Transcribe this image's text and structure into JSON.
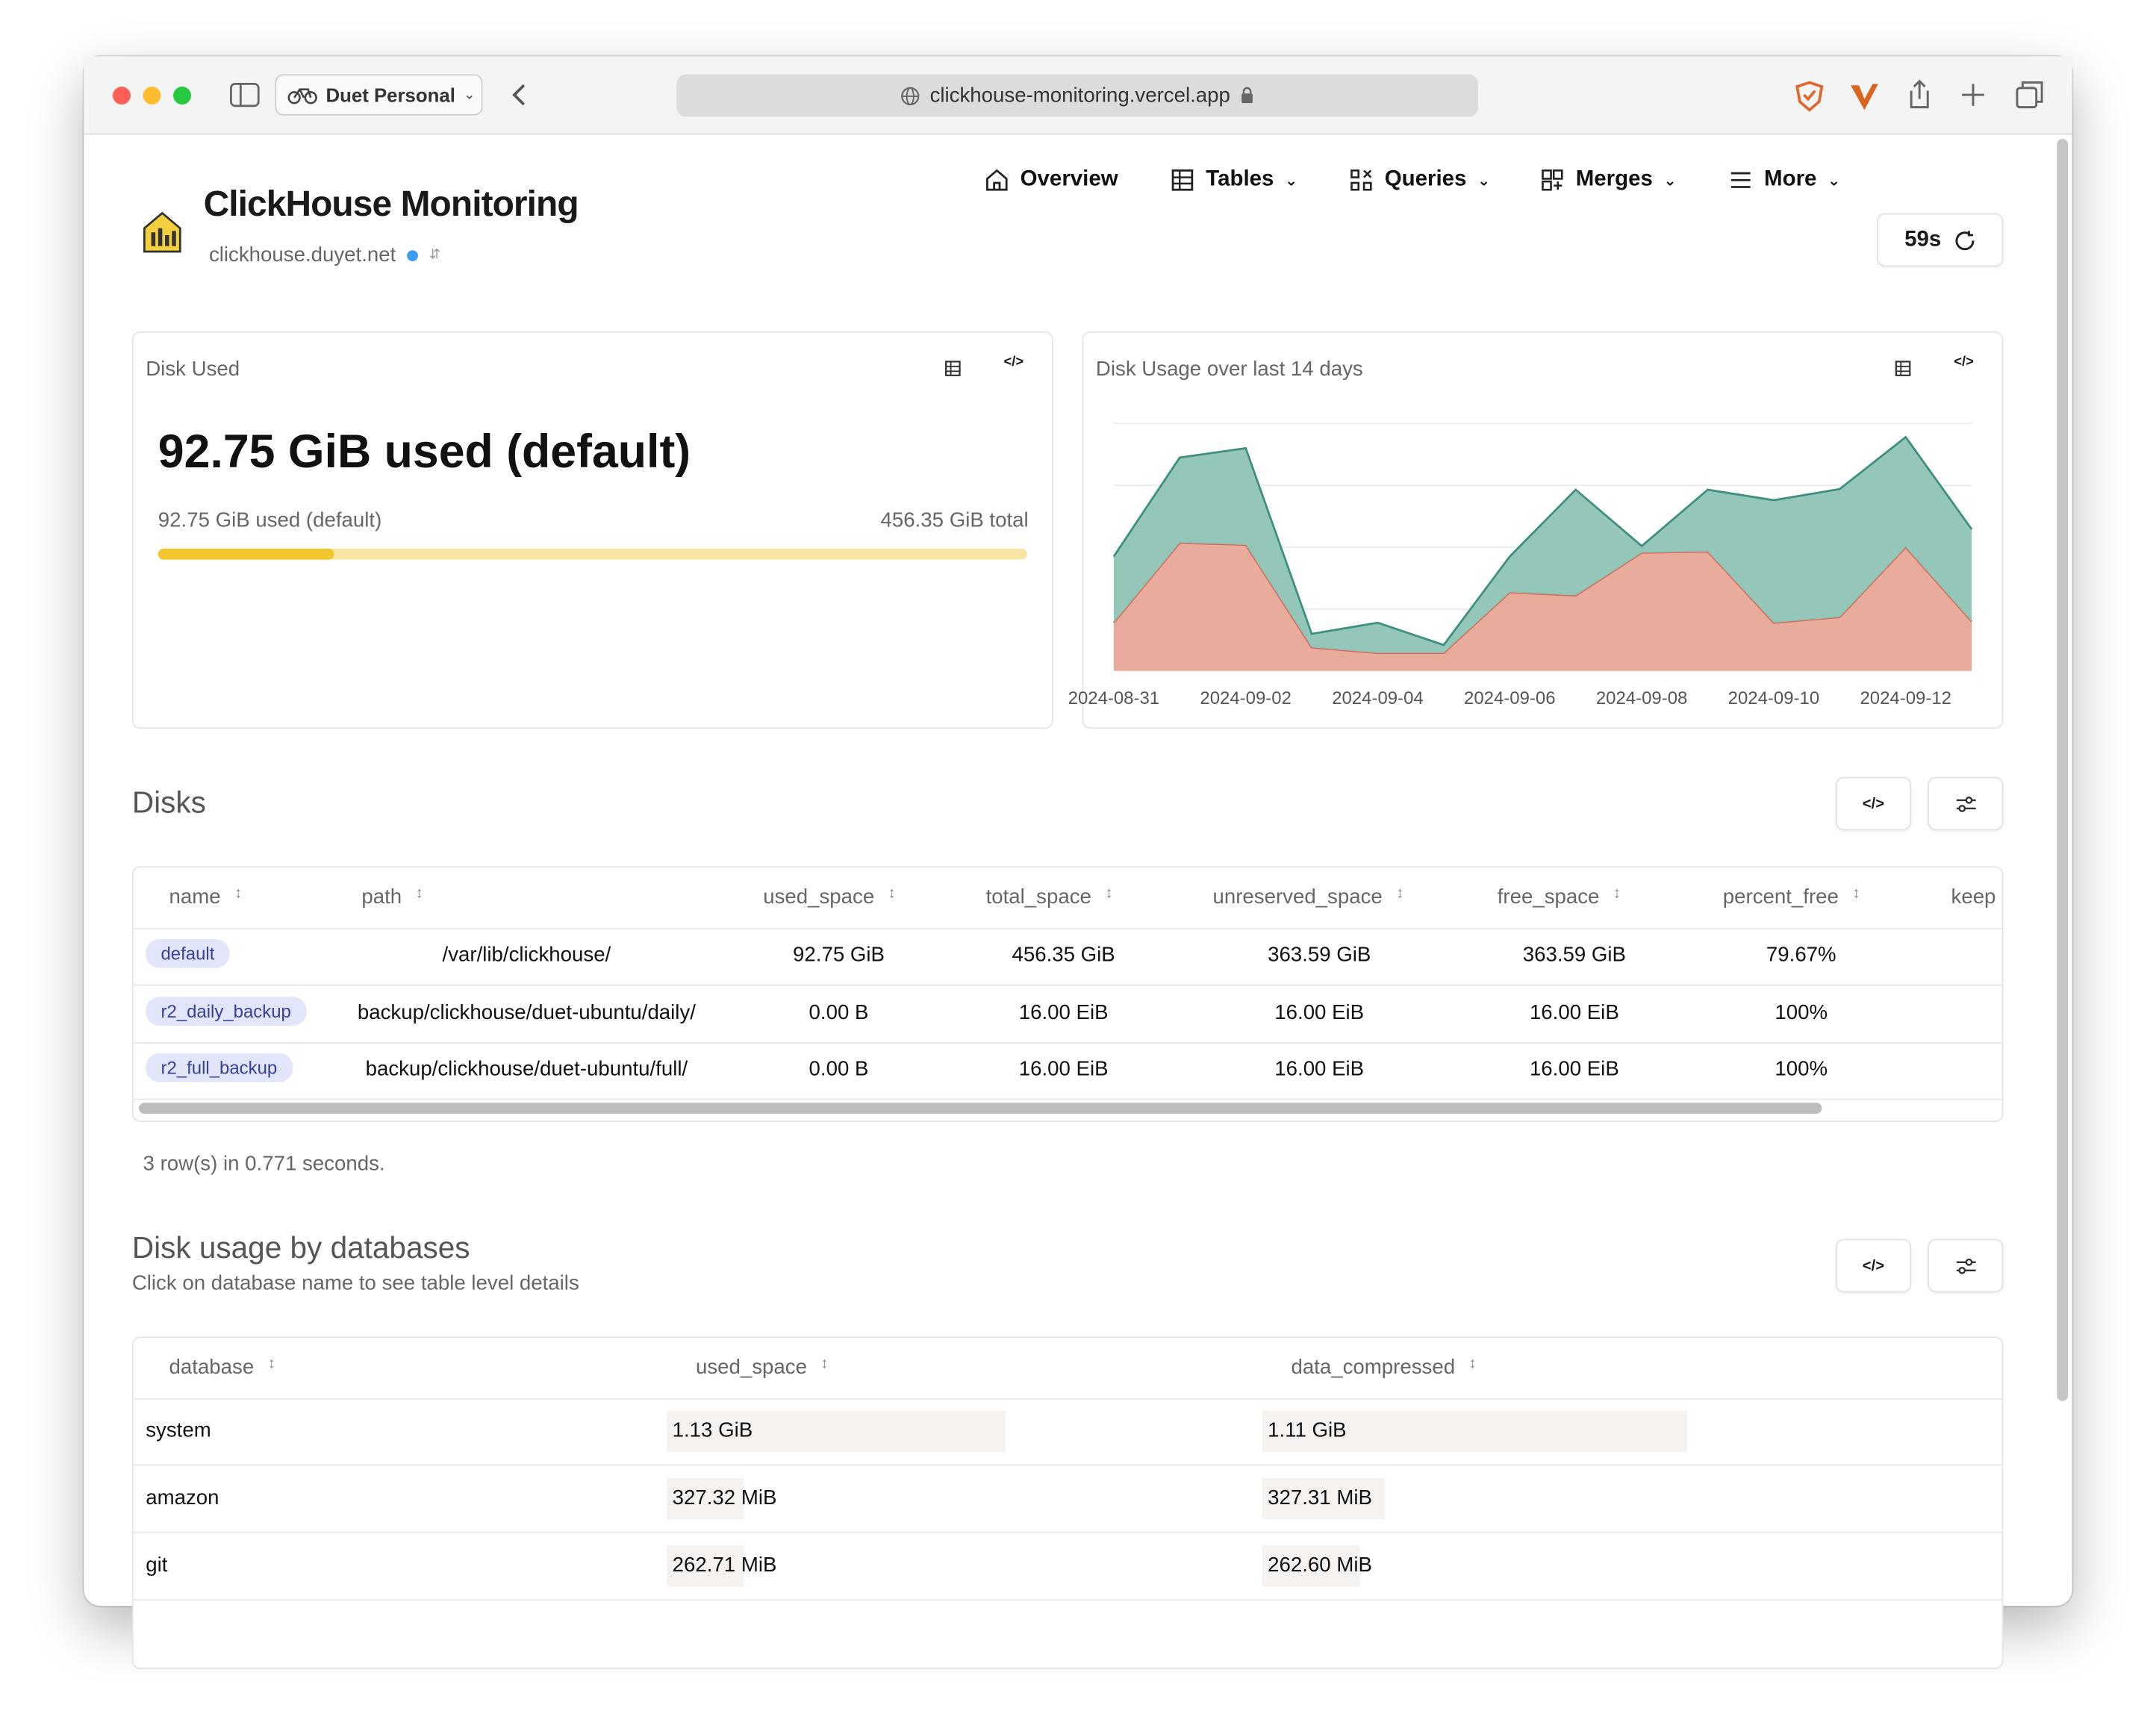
{
  "browser": {
    "profile": "Duet Personal",
    "url": "clickhouse-monitoring.vercel.app"
  },
  "header": {
    "title": "ClickHouse Monitoring",
    "host": "clickhouse.duyet.net",
    "nav": [
      "Overview",
      "Tables",
      "Queries",
      "Merges",
      "More"
    ],
    "refresh": "59s"
  },
  "disk_used": {
    "title": "Disk Used",
    "headline": "92.75 GiB used (default)",
    "used_label": "92.75 GiB used (default)",
    "total_label": "456.35 GiB total",
    "used": 92.75,
    "total": 456.35
  },
  "chart_data": {
    "type": "area",
    "title": "Disk Usage over last 14 days",
    "categories": [
      "2024-08-31",
      null,
      "2024-09-02",
      null,
      "2024-09-04",
      null,
      "2024-09-06",
      null,
      "2024-09-08",
      null,
      "2024-09-10",
      null,
      "2024-09-12",
      null
    ],
    "series": [
      {
        "color": "#e8a796",
        "values": [
          0.78,
          2.07,
          2.04,
          0.38,
          0.29,
          0.29,
          1.27,
          1.22,
          1.91,
          1.93,
          0.78,
          0.87,
          2.0,
          0.8
        ]
      },
      {
        "color": "#8ec3b6",
        "values": [
          1.07,
          1.38,
          1.56,
          0.22,
          0.49,
          0.13,
          0.58,
          1.71,
          0.11,
          1.0,
          1.98,
          2.07,
          1.78,
          1.49
        ]
      }
    ],
    "ylim": [
      0,
      4
    ],
    "yticks": [
      1,
      2,
      3,
      4
    ],
    "stacked": true,
    "grid": true
  },
  "disks": {
    "title": "Disks",
    "columns": [
      "name",
      "path",
      "used_space",
      "total_space",
      "unreserved_space",
      "free_space",
      "percent_free",
      "keep"
    ],
    "rows": [
      [
        "default",
        "/var/lib/clickhouse/",
        "92.75 GiB",
        "456.35 GiB",
        "363.59 GiB",
        "363.59 GiB",
        "79.67%",
        ""
      ],
      [
        "r2_daily_backup",
        "backup/clickhouse/duet-ubuntu/daily/",
        "0.00 B",
        "16.00 EiB",
        "16.00 EiB",
        "16.00 EiB",
        "100%",
        ""
      ],
      [
        "r2_full_backup",
        "backup/clickhouse/duet-ubuntu/full/",
        "0.00 B",
        "16.00 EiB",
        "16.00 EiB",
        "16.00 EiB",
        "100%",
        ""
      ]
    ],
    "footer": "3 row(s) in 0.771 seconds."
  },
  "databases": {
    "title": "Disk usage by databases",
    "subtitle": "Click on database name to see table level details",
    "columns": [
      "database",
      "used_space",
      "data_compressed"
    ],
    "rows": [
      [
        "system",
        "1.13 GiB",
        "1.11 GiB"
      ],
      [
        "amazon",
        "327.32 MiB",
        "327.31 MiB"
      ],
      [
        "git",
        "262.71 MiB",
        "262.60 MiB"
      ]
    ]
  }
}
